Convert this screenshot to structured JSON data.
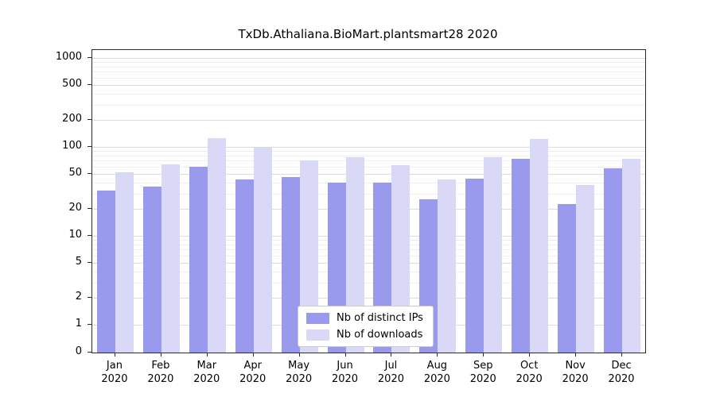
{
  "chart_data": {
    "type": "bar",
    "title": "TxDb.Athaliana.BioMart.plantsmart28 2020",
    "categories": [
      "Jan",
      "Feb",
      "Mar",
      "Apr",
      "May",
      "Jun",
      "Jul",
      "Aug",
      "Sep",
      "Oct",
      "Nov",
      "Dec"
    ],
    "year": "2020",
    "yscale": "log",
    "yticks": [
      0,
      1,
      2,
      5,
      10,
      20,
      50,
      100,
      200,
      500,
      1000
    ],
    "ylim": [
      0,
      1000
    ],
    "grid": true,
    "legend_position": "bottom-center",
    "series": [
      {
        "name": "Nb of distinct IPs",
        "color": "#9999ee",
        "values": [
          32,
          36,
          60,
          43,
          46,
          40,
          40,
          26,
          44,
          73,
          23,
          57
        ]
      },
      {
        "name": "Nb of downloads",
        "color": "#d9d9f7",
        "values": [
          52,
          64,
          125,
          97,
          70,
          76,
          62,
          43,
          76,
          122,
          37,
          73
        ]
      }
    ]
  }
}
